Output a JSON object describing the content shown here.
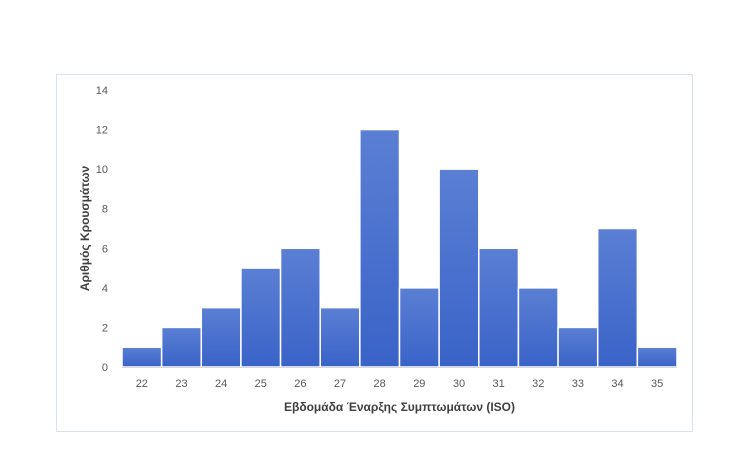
{
  "chart_data": {
    "type": "bar",
    "title": "",
    "xlabel": "Εβδομάδα Έναρξης Συμπτωμάτων (ISO)",
    "ylabel": "Αριθμός Κρουσμάτων",
    "categories": [
      "22",
      "23",
      "24",
      "25",
      "26",
      "27",
      "28",
      "29",
      "30",
      "31",
      "32",
      "33",
      "34",
      "35"
    ],
    "values": [
      1,
      2,
      3,
      5,
      6,
      3,
      12,
      4,
      10,
      6,
      4,
      2,
      7,
      1
    ],
    "ylim": [
      0,
      14
    ],
    "yticks": [
      0,
      2,
      4,
      6,
      8,
      10,
      12,
      14
    ],
    "grid": false,
    "legend": "none",
    "bar_color_top": "#5a7fd4",
    "bar_color_bottom": "#3a63c8",
    "bar_edge_color": "#ffffff"
  }
}
